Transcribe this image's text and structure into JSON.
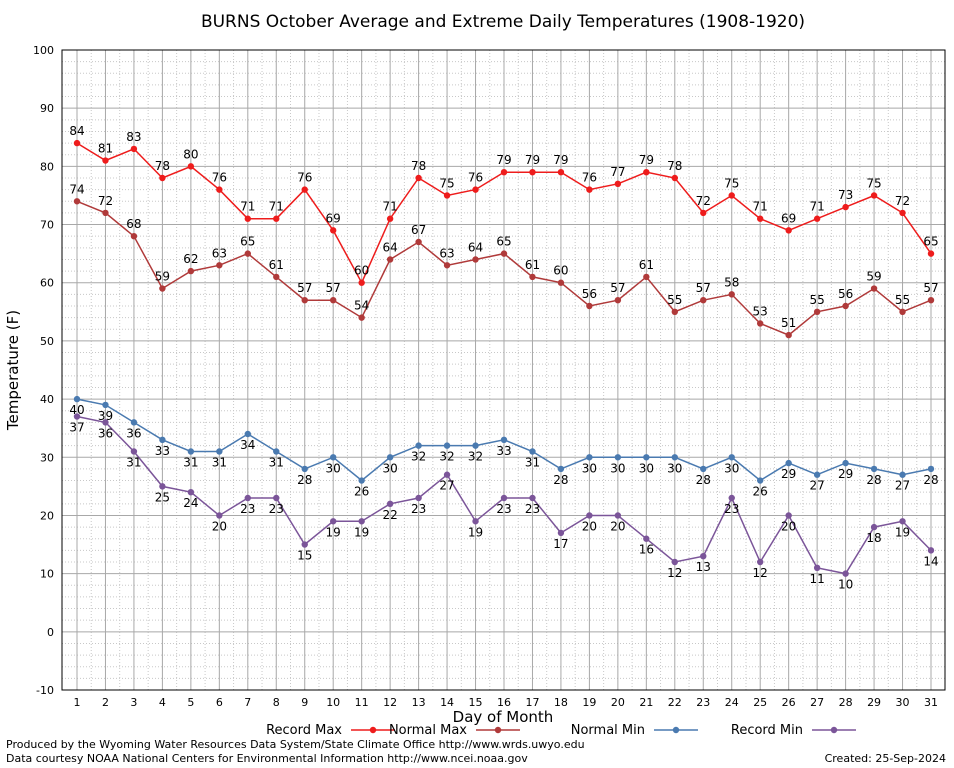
{
  "chart_data": {
    "type": "line",
    "title": "BURNS October Average and Extreme Daily Temperatures (1908-1920)",
    "xlabel": "Day of Month",
    "ylabel": "Temperature (F)",
    "x": [
      1,
      2,
      3,
      4,
      5,
      6,
      7,
      8,
      9,
      10,
      11,
      12,
      13,
      14,
      15,
      16,
      17,
      18,
      19,
      20,
      21,
      22,
      23,
      24,
      25,
      26,
      27,
      28,
      29,
      30,
      31
    ],
    "ylim": [
      -10,
      100
    ],
    "yticks": [
      -10,
      0,
      10,
      20,
      30,
      40,
      50,
      60,
      70,
      80,
      90,
      100
    ],
    "grid": true,
    "legend_position": "bottom",
    "series": [
      {
        "name": "Record Max",
        "color": "#ee1c1c",
        "labels": "above",
        "values": [
          84,
          81,
          83,
          78,
          80,
          76,
          71,
          71,
          76,
          69,
          60,
          71,
          78,
          75,
          76,
          79,
          79,
          79,
          76,
          77,
          79,
          78,
          72,
          75,
          71,
          69,
          71,
          73,
          75,
          72,
          65
        ]
      },
      {
        "name": "Normal Max",
        "color": "#b03a3a",
        "labels": "above",
        "values": [
          74,
          72,
          68,
          59,
          62,
          63,
          65,
          61,
          57,
          57,
          54,
          64,
          67,
          63,
          64,
          65,
          61,
          60,
          56,
          57,
          61,
          55,
          57,
          58,
          53,
          51,
          55,
          56,
          59,
          55,
          57
        ]
      },
      {
        "name": "Normal Min",
        "color": "#4a7ab0",
        "labels": "below",
        "values": [
          40,
          39,
          36,
          33,
          31,
          31,
          34,
          31,
          28,
          30,
          26,
          30,
          32,
          32,
          32,
          33,
          31,
          28,
          30,
          30,
          30,
          30,
          28,
          30,
          26,
          29,
          27,
          29,
          28,
          27,
          28
        ]
      },
      {
        "name": "Record Min",
        "color": "#7b5599",
        "labels": "below",
        "values": [
          37,
          36,
          31,
          25,
          24,
          20,
          23,
          23,
          15,
          19,
          19,
          22,
          23,
          27,
          19,
          23,
          23,
          17,
          20,
          20,
          16,
          12,
          13,
          23,
          12,
          20,
          11,
          10,
          18,
          19,
          14
        ]
      }
    ]
  },
  "footer": {
    "credit_line1": "Produced by the Wyoming Water Resources Data System/State Climate Office http://www.wrds.uwyo.edu",
    "credit_line2": "Data courtesy NOAA National Centers for Environmental Information http://www.ncei.noaa.gov",
    "created": "Created:  25-Sep-2024"
  }
}
